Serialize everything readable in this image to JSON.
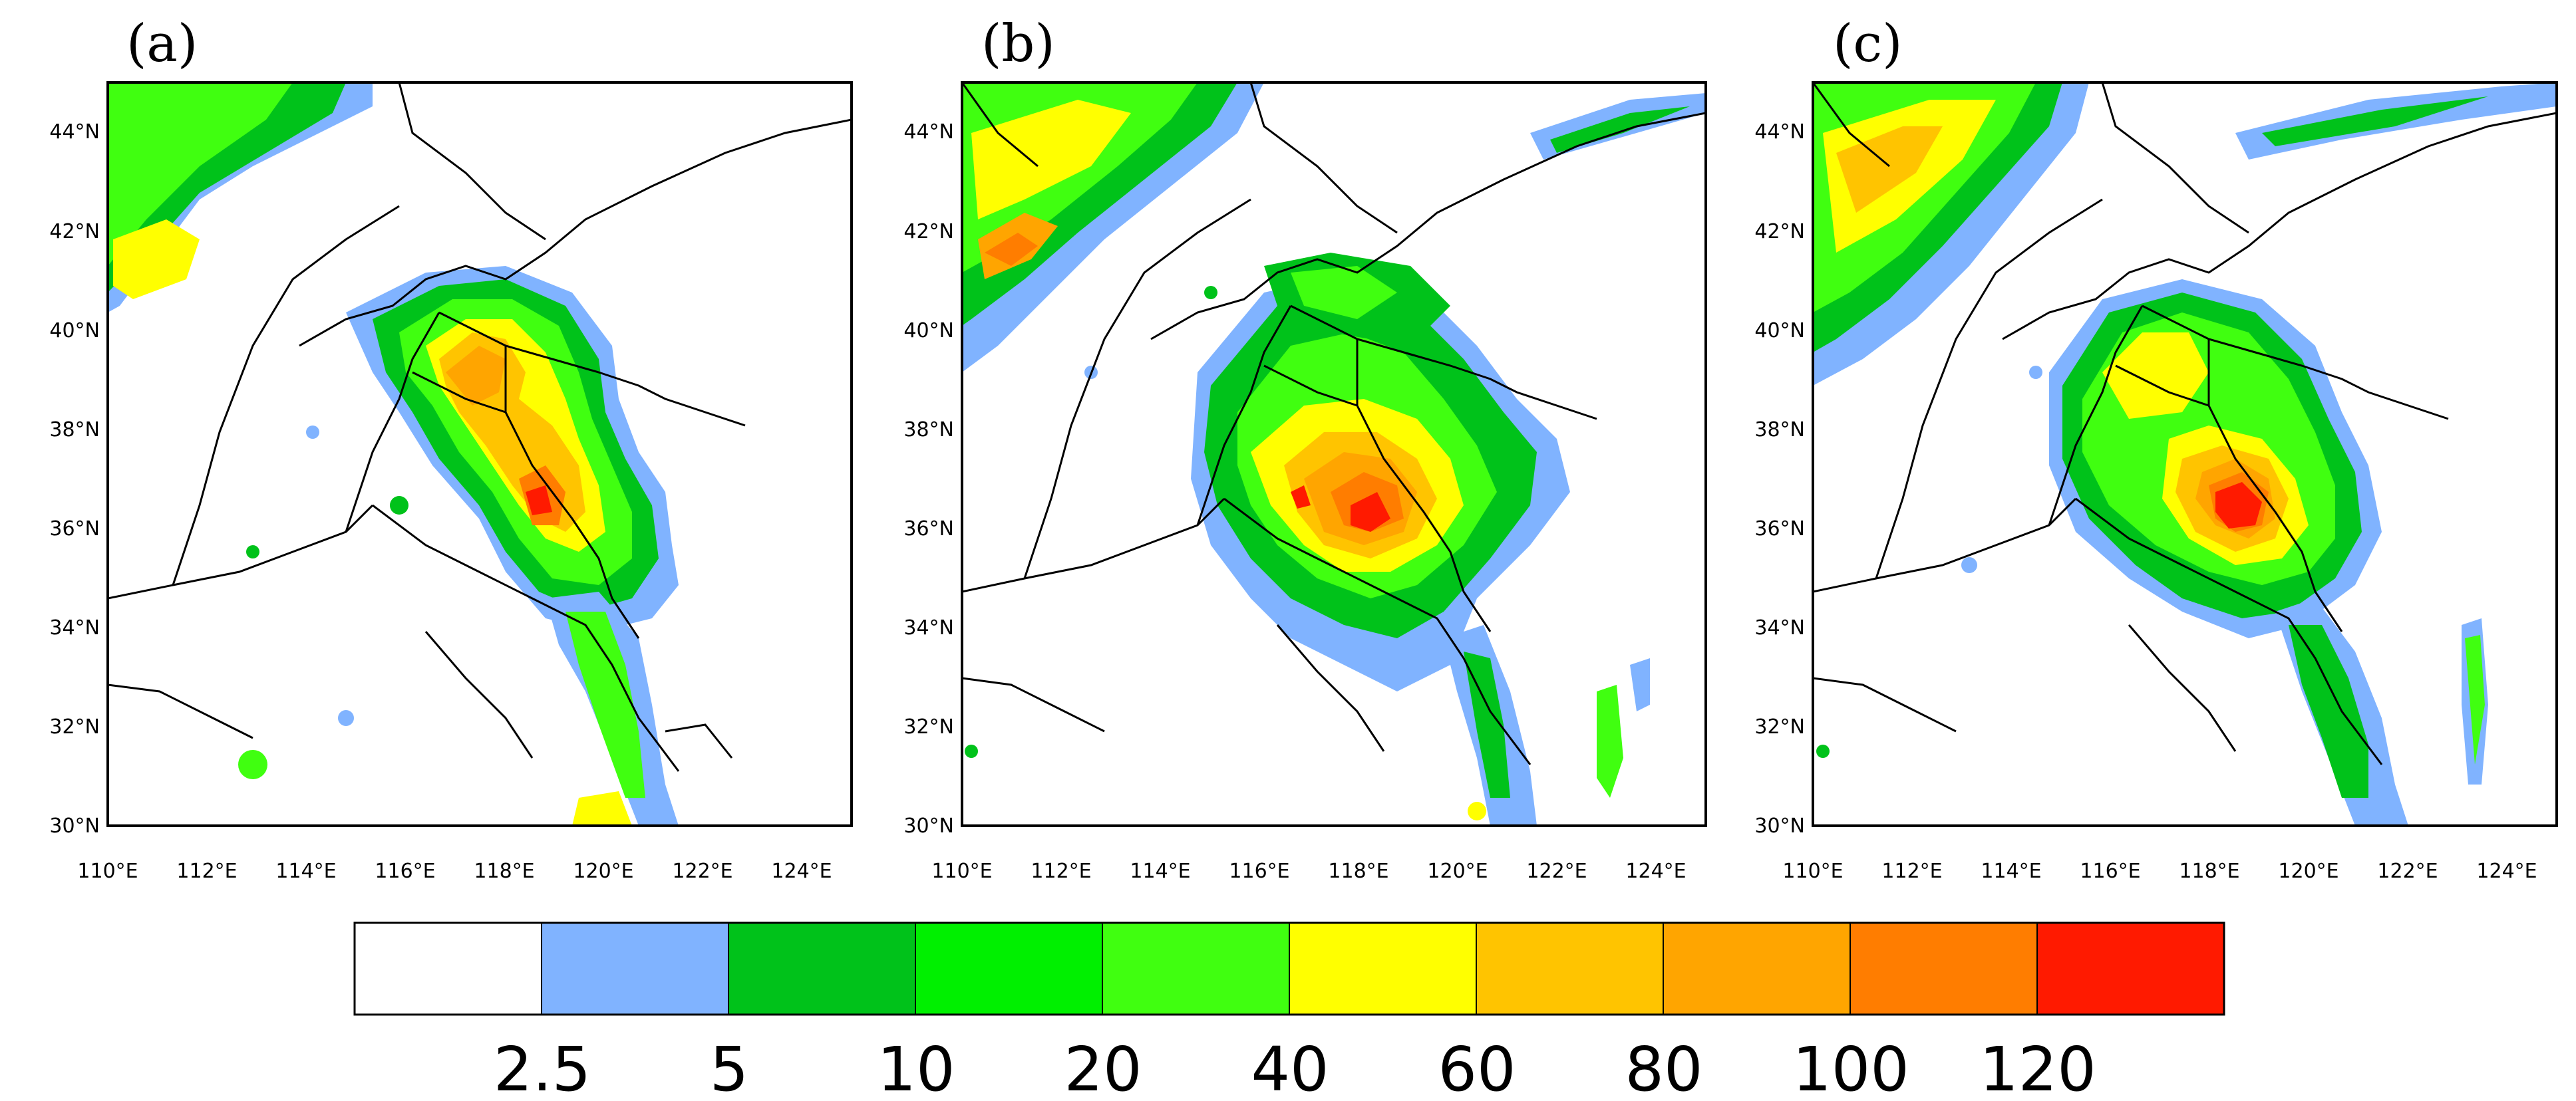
{
  "panels": [
    {
      "label": "(a)"
    },
    {
      "label": "(b)"
    },
    {
      "label": "(c)"
    }
  ],
  "axes": {
    "lat_labels": [
      "44°N",
      "42°N",
      "40°N",
      "38°N",
      "36°N",
      "34°N",
      "32°N",
      "30°N"
    ],
    "lon_labels": [
      "110°E",
      "112°E",
      "114°E",
      "116°E",
      "118°E",
      "120°E",
      "122°E",
      "124°E"
    ],
    "lon_range": [
      110,
      125
    ],
    "lat_range": [
      30,
      45
    ]
  },
  "colorbar": {
    "levels": [
      "2.5",
      "5",
      "10",
      "20",
      "40",
      "60",
      "80",
      "100",
      "120"
    ],
    "colors": [
      "#ffffff",
      "#80b3ff",
      "#00c21a",
      "#00f000",
      "#40ff10",
      "#ffff00",
      "#ffc400",
      "#ffa500",
      "#ff7d00",
      "#ff1a00"
    ]
  }
}
